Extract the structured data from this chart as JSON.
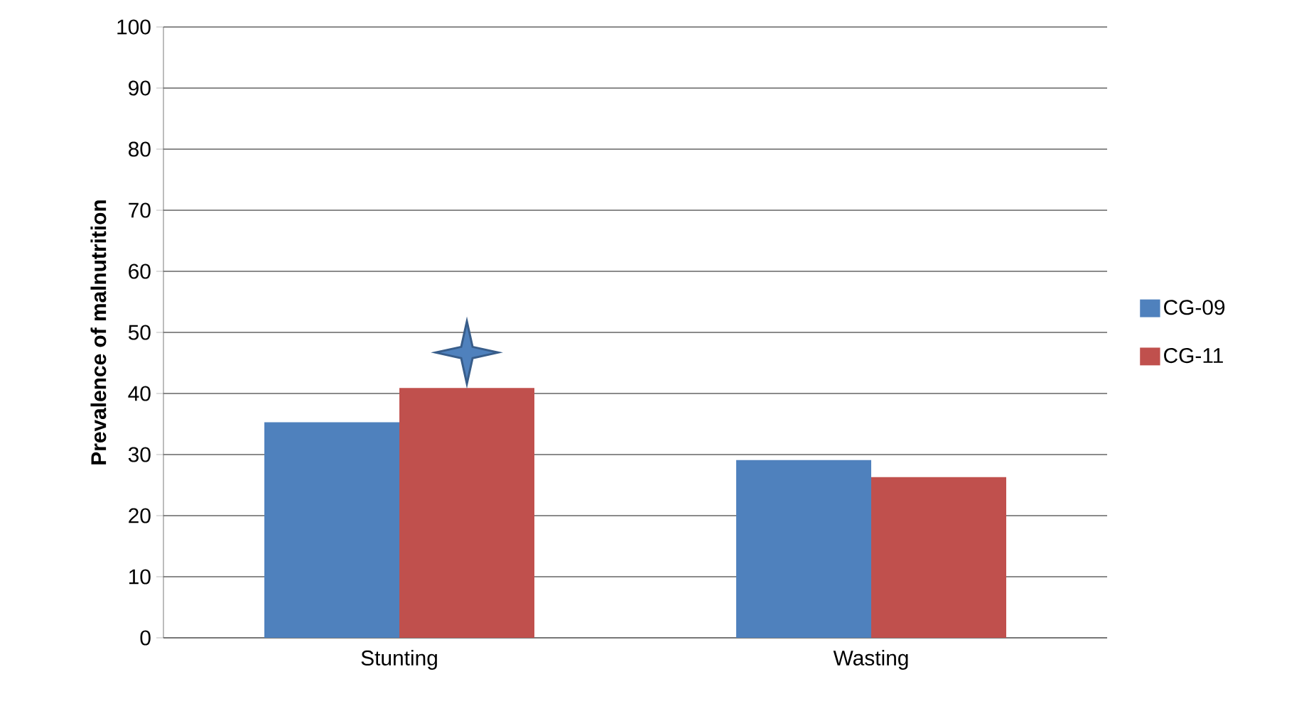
{
  "chart_data": {
    "type": "bar",
    "ylabel": "Prevalence of malnutrition",
    "categories": [
      "Stunting",
      "Wasting"
    ],
    "series": [
      {
        "name": "CG-09",
        "color": "#4f81bd",
        "values": [
          35.3,
          29.1
        ]
      },
      {
        "name": "CG-11",
        "color": "#c0504d",
        "values": [
          40.9,
          26.3
        ]
      }
    ],
    "ylim": [
      0,
      100
    ],
    "yticks": [
      0,
      10,
      20,
      30,
      40,
      50,
      60,
      70,
      80,
      90,
      100
    ],
    "grid": "y",
    "legend": "right"
  }
}
